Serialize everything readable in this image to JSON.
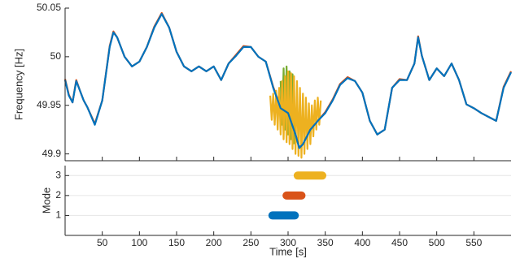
{
  "chart_data": [
    {
      "type": "line",
      "ylabel": "Frequency [Hz]",
      "xlim": [
        0,
        600
      ],
      "xticks": [
        50,
        100,
        150,
        200,
        250,
        300,
        350,
        400,
        450,
        500,
        550
      ],
      "ylim": [
        49.893,
        50.05
      ],
      "yticks": [
        49.9,
        49.95,
        50,
        50.05
      ],
      "grid": false,
      "series": [
        {
          "color": "#D95319",
          "x": [
            0,
            5,
            10,
            15,
            20,
            25,
            30,
            40,
            50,
            60,
            65,
            70,
            80,
            90,
            100,
            110,
            120,
            130,
            140,
            150,
            160,
            170,
            180,
            190,
            200,
            210,
            220,
            230,
            240,
            250,
            260,
            270,
            280,
            290,
            300,
            310,
            315,
            320,
            330,
            340,
            350,
            360,
            370,
            380,
            390,
            400,
            410,
            420,
            430,
            440,
            450,
            460,
            470,
            475,
            480,
            490,
            500,
            510,
            520,
            530,
            540,
            550,
            560,
            570,
            580,
            590,
            600
          ],
          "values": [
            49.977,
            49.961,
            49.953,
            49.976,
            49.965,
            49.955,
            49.948,
            49.931,
            49.955,
            50.011,
            50.026,
            50.02,
            50.0,
            49.99,
            49.995,
            50.01,
            50.031,
            50.045,
            50.03,
            50.005,
            49.99,
            49.985,
            49.99,
            49.985,
            49.99,
            49.976,
            49.993,
            50.002,
            50.011,
            50.01,
            50.0,
            49.995,
            49.969,
            49.948,
            49.943,
            49.92,
            49.907,
            49.91,
            49.925,
            49.934,
            49.943,
            49.956,
            49.972,
            49.979,
            49.975,
            49.963,
            49.934,
            49.92,
            49.925,
            49.968,
            49.977,
            49.976,
            49.993,
            50.021,
            50.001,
            49.976,
            49.988,
            49.98,
            49.993,
            49.976,
            49.951,
            49.947,
            49.942,
            49.938,
            49.934,
            49.969,
            49.985
          ]
        },
        {
          "color": "#77AC30",
          "x": [
            290,
            292,
            294,
            296,
            298,
            300,
            302,
            304,
            306,
            308
          ],
          "values": [
            49.975,
            49.93,
            49.988,
            49.925,
            49.99,
            49.92,
            49.985,
            49.915,
            49.982,
            49.91
          ]
        },
        {
          "color": "#EDB120",
          "x": [
            276,
            278,
            280,
            282,
            284,
            286,
            288,
            290,
            292,
            294,
            296,
            298,
            300,
            302,
            304,
            306,
            308,
            310,
            312,
            314,
            316,
            318,
            320,
            322,
            324,
            326,
            328,
            330,
            332,
            334,
            336,
            338,
            340,
            342,
            344
          ],
          "values": [
            49.96,
            49.935,
            49.962,
            49.93,
            49.965,
            49.925,
            49.968,
            49.92,
            49.975,
            49.915,
            49.98,
            49.912,
            49.985,
            49.91,
            49.983,
            49.905,
            49.98,
            49.9,
            49.975,
            49.898,
            49.968,
            49.896,
            49.962,
            49.9,
            49.958,
            49.905,
            49.952,
            49.91,
            49.95,
            49.918,
            49.955,
            49.925,
            49.958,
            49.93,
            49.955
          ]
        },
        {
          "color": "#0072BD",
          "x": [
            0,
            5,
            10,
            15,
            20,
            25,
            30,
            40,
            50,
            60,
            65,
            70,
            80,
            90,
            100,
            110,
            120,
            130,
            140,
            150,
            160,
            170,
            180,
            190,
            200,
            210,
            220,
            230,
            240,
            250,
            260,
            270,
            280,
            290,
            300,
            310,
            315,
            320,
            330,
            340,
            350,
            360,
            370,
            380,
            390,
            400,
            410,
            420,
            430,
            440,
            450,
            460,
            470,
            475,
            480,
            490,
            500,
            510,
            520,
            530,
            540,
            550,
            560,
            570,
            580,
            590,
            600
          ],
          "values": [
            49.976,
            49.96,
            49.953,
            49.975,
            49.965,
            49.955,
            49.948,
            49.93,
            49.955,
            50.01,
            50.025,
            50.02,
            50.0,
            49.99,
            49.995,
            50.01,
            50.03,
            50.044,
            50.03,
            50.005,
            49.99,
            49.985,
            49.99,
            49.985,
            49.99,
            49.976,
            49.993,
            50.001,
            50.01,
            50.01,
            50.0,
            49.995,
            49.968,
            49.947,
            49.942,
            49.92,
            49.906,
            49.91,
            49.925,
            49.934,
            49.942,
            49.955,
            49.971,
            49.978,
            49.975,
            49.963,
            49.934,
            49.92,
            49.925,
            49.968,
            49.976,
            49.976,
            49.993,
            50.02,
            50.001,
            49.976,
            49.988,
            49.98,
            49.993,
            49.976,
            49.951,
            49.947,
            49.942,
            49.938,
            49.934,
            49.968,
            49.984
          ]
        }
      ]
    },
    {
      "type": "segments",
      "ylabel": "Mode",
      "xlabel": "Time [s]",
      "xlim": [
        0,
        600
      ],
      "xticks": [
        50,
        100,
        150,
        200,
        250,
        300,
        350,
        400,
        450,
        500,
        550
      ],
      "ylim": [
        0,
        3.5
      ],
      "yticks": [
        1,
        2,
        3
      ],
      "grid": true,
      "series": [
        {
          "color": "#0072BD",
          "x": [
            279,
            309
          ],
          "values": [
            1,
            1
          ]
        },
        {
          "color": "#D95319",
          "x": [
            298,
            318
          ],
          "values": [
            2,
            2
          ]
        },
        {
          "color": "#EDB120",
          "x": [
            313,
            346
          ],
          "values": [
            3,
            3
          ]
        }
      ]
    }
  ]
}
